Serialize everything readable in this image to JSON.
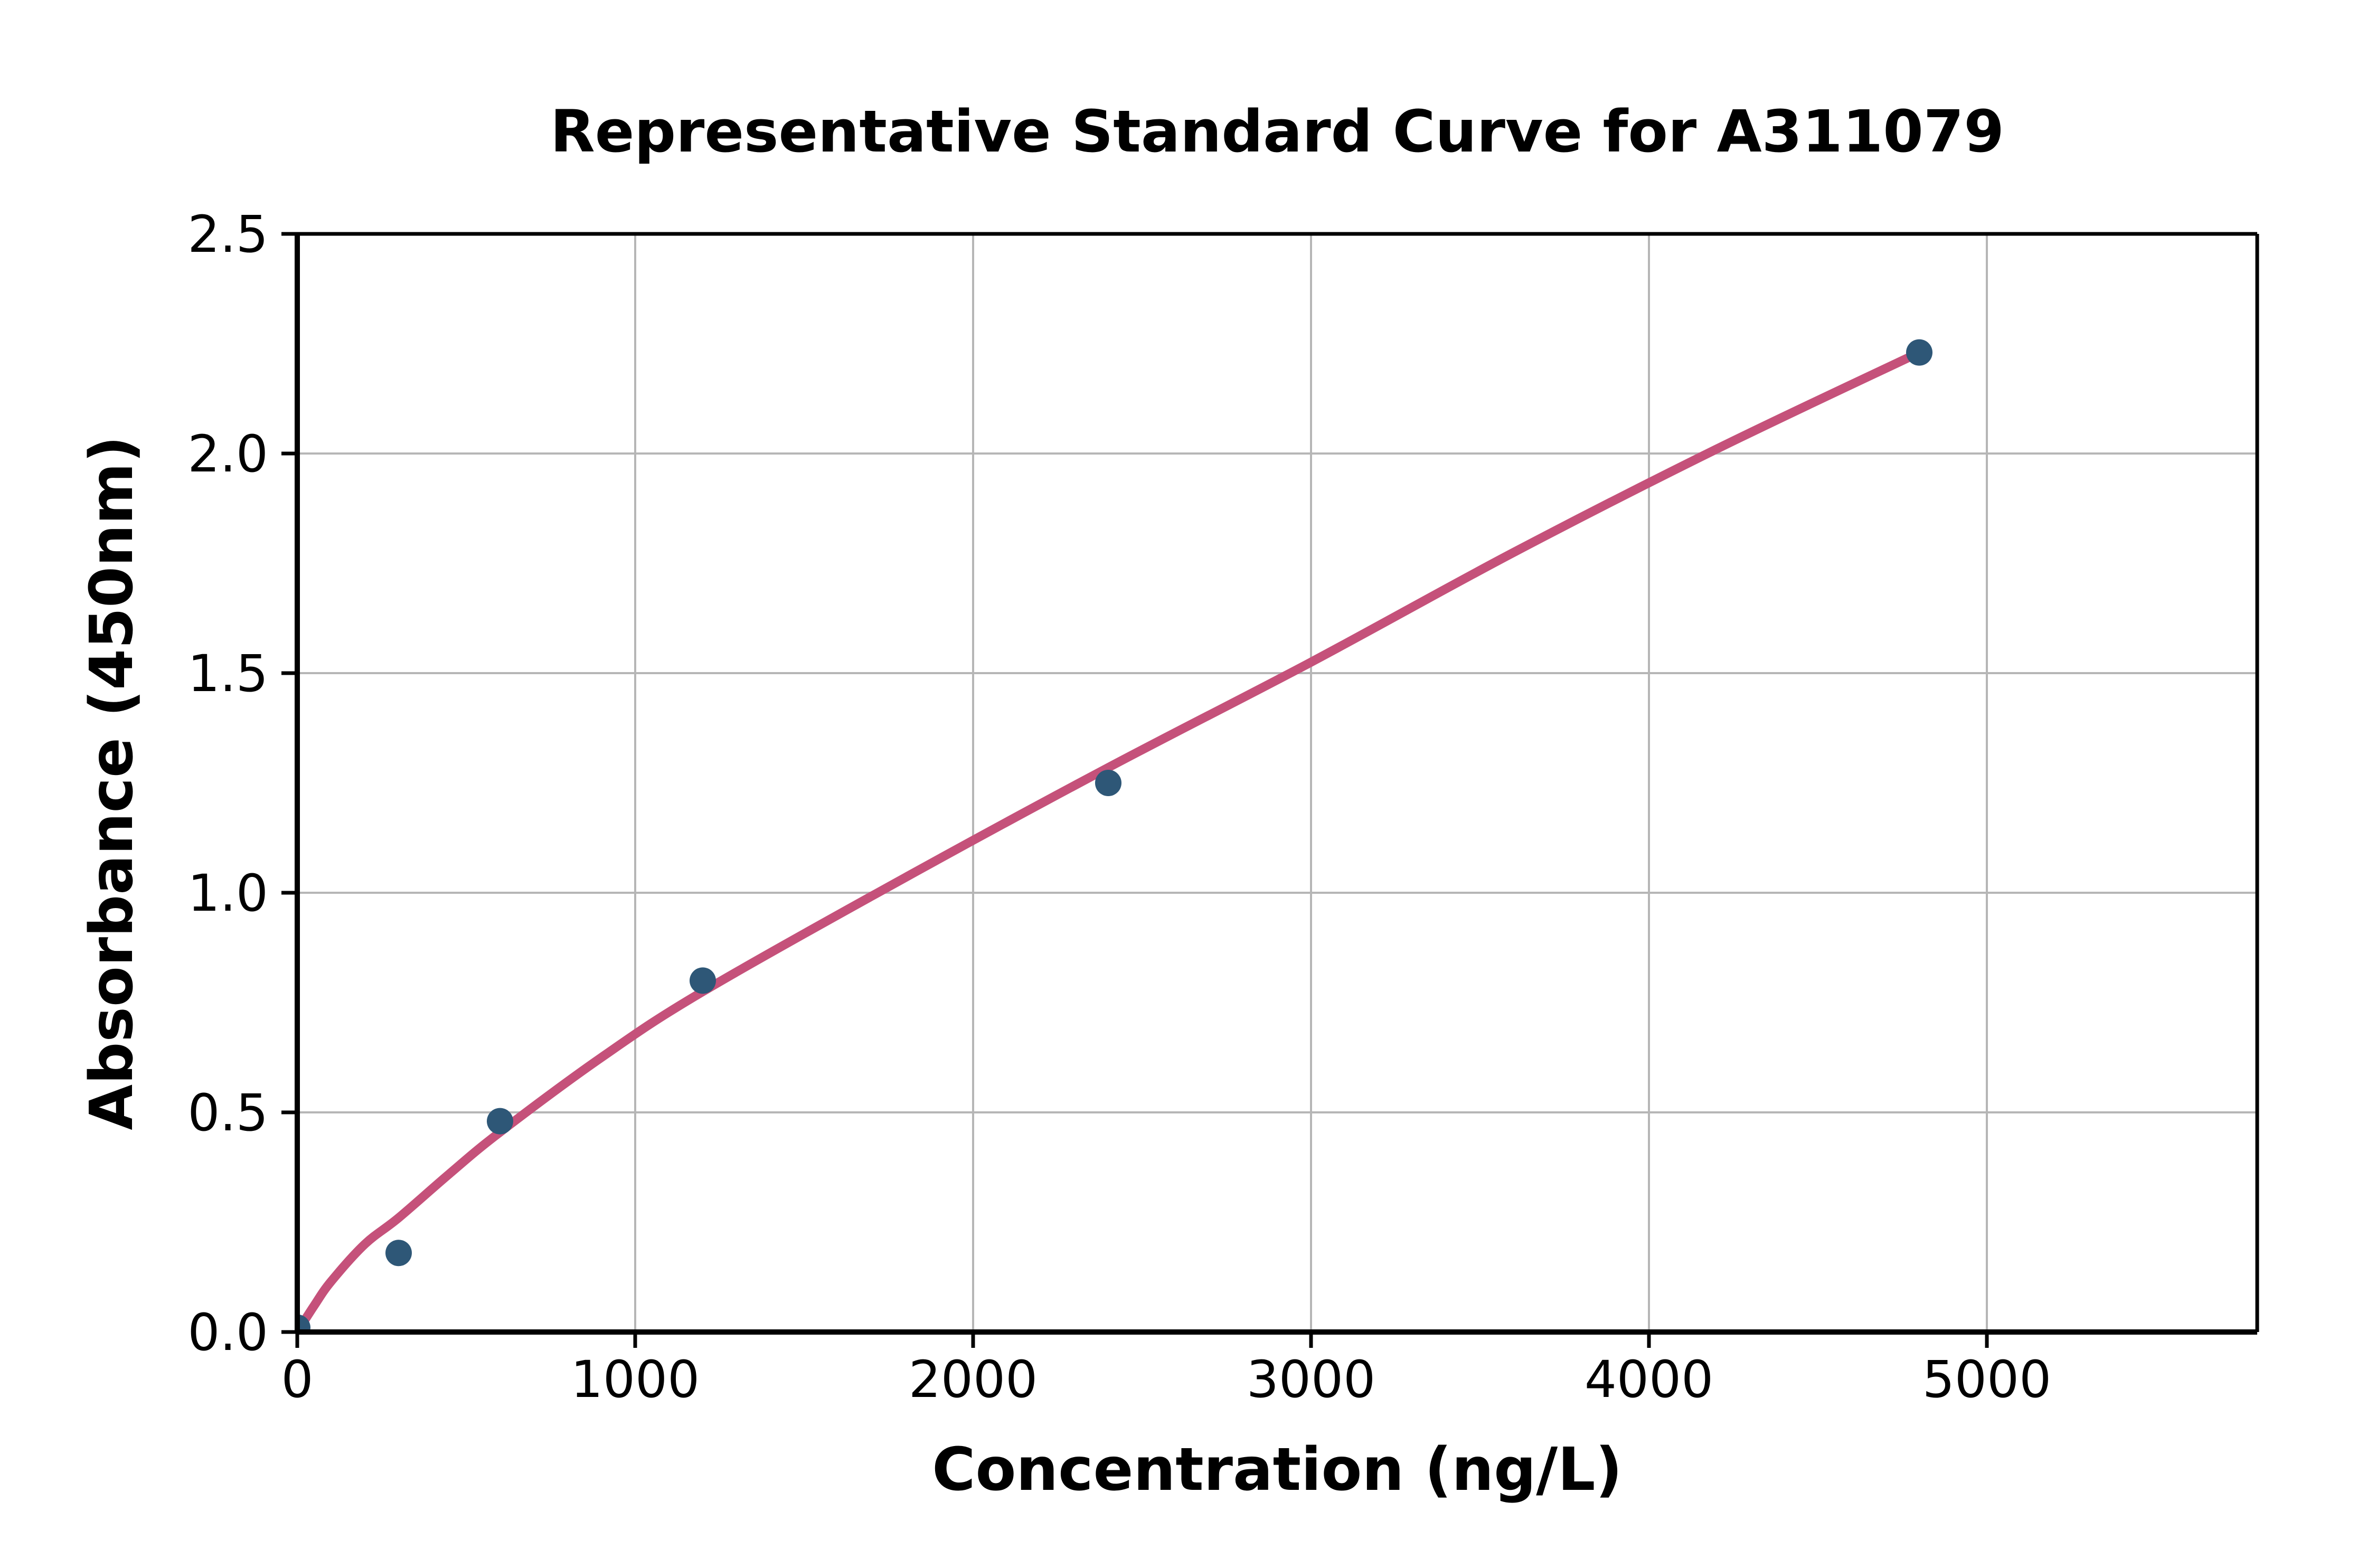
{
  "chart_data": {
    "type": "scatter",
    "title": "Representative Standard Curve for A311079",
    "xlabel": "Concentration (ng/L)",
    "ylabel": "Absorbance (450nm)",
    "xlim": [
      0,
      5800
    ],
    "ylim": [
      0,
      2.5
    ],
    "xticks": [
      0,
      1000,
      2000,
      3000,
      4000,
      5000
    ],
    "xtick_labels": [
      "0",
      "1000",
      "2000",
      "3000",
      "4000",
      "5000"
    ],
    "yticks": [
      0.0,
      0.5,
      1.0,
      1.5,
      2.0,
      2.5
    ],
    "ytick_labels": [
      "0.0",
      "0.5",
      "1.0",
      "1.5",
      "2.0",
      "2.5"
    ],
    "grid": true,
    "legend_position": "none",
    "points": [
      {
        "x": 0,
        "y": 0.01
      },
      {
        "x": 300,
        "y": 0.18
      },
      {
        "x": 600,
        "y": 0.48
      },
      {
        "x": 1200,
        "y": 0.8
      },
      {
        "x": 2400,
        "y": 1.25
      },
      {
        "x": 4800,
        "y": 2.23
      }
    ],
    "fit_curve": [
      [
        0,
        0.0
      ],
      [
        50,
        0.06
      ],
      [
        100,
        0.115
      ],
      [
        200,
        0.2
      ],
      [
        300,
        0.26
      ],
      [
        450,
        0.36
      ],
      [
        600,
        0.455
      ],
      [
        900,
        0.625
      ],
      [
        1200,
        0.775
      ],
      [
        1800,
        1.035
      ],
      [
        2400,
        1.285
      ],
      [
        3000,
        1.525
      ],
      [
        3600,
        1.775
      ],
      [
        4200,
        2.01
      ],
      [
        4800,
        2.23
      ]
    ],
    "colors": {
      "point": "#2e5777",
      "curve": "#c5517a",
      "grid": "#b6b6b6",
      "axis": "#000000",
      "text": "#000000",
      "background": "#ffffff"
    }
  }
}
